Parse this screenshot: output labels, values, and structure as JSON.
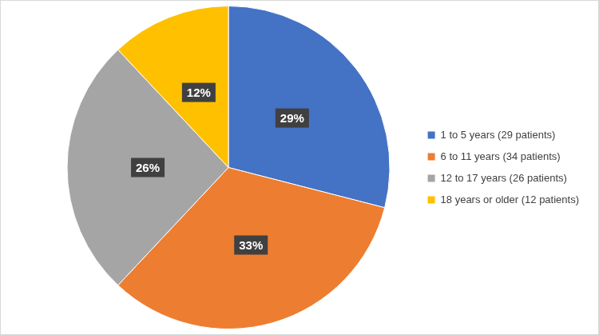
{
  "chart_data": {
    "type": "pie",
    "categories": [
      "1 to 5 years (29 patients)",
      "6 to 11 years (34 patients)",
      "12 to 17 years (26 patients)",
      "18 years or older (12 patients)"
    ],
    "values": [
      29,
      33,
      26,
      12
    ],
    "value_labels": [
      "29%",
      "33%",
      "26%",
      "12%"
    ],
    "colors": [
      "#4472c4",
      "#ed7d31",
      "#a5a5a5",
      "#ffc000"
    ],
    "legend": "right",
    "data_labels": true
  }
}
